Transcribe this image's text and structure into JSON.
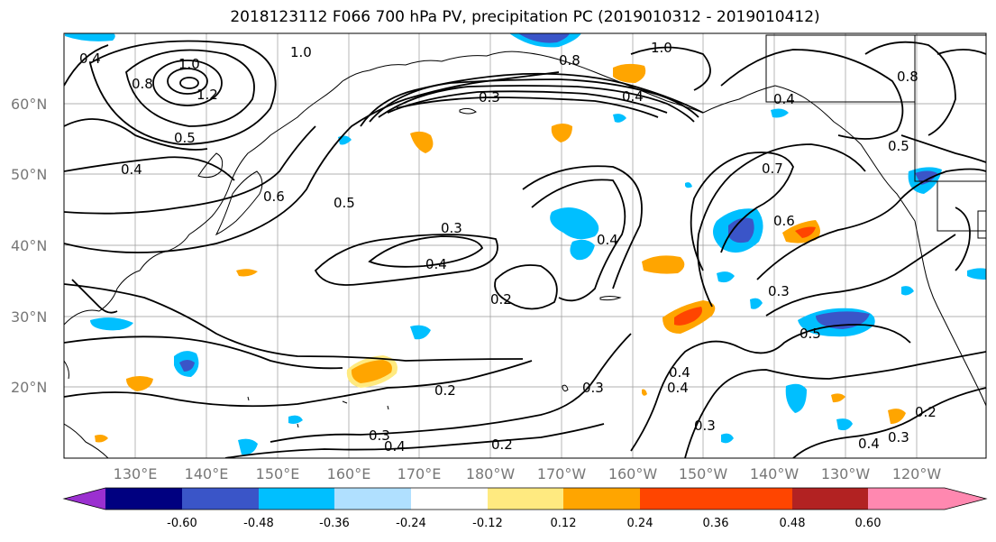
{
  "title": "2018123112 F066 700 hPa PV, precipitation PC (2019010312 - 2019010412)",
  "lat_labels": [
    "60°N",
    "50°N",
    "40°N",
    "30°N",
    "20°N"
  ],
  "lon_labels": [
    "130°E",
    "140°E",
    "150°E",
    "160°E",
    "170°E",
    "180°W",
    "170°W",
    "160°W",
    "150°W",
    "140°W",
    "130°W",
    "120°W"
  ],
  "contour_labels": [
    "1.0",
    "1.0",
    "1.0",
    "1.2",
    "0.8",
    "0.4",
    "0.4",
    "0.5",
    "0.6",
    "0.5",
    "0.3",
    "0.4",
    "0.2",
    "0.4",
    "0.3",
    "0.2",
    "0.3",
    "0.4",
    "0.2",
    "0.3",
    "0.4",
    "0.7",
    "0.6",
    "0.3",
    "0.5",
    "0.4",
    "0.3",
    "0.2",
    "0.4",
    "0.5",
    "0.8",
    "0.8",
    "0.4",
    "0.3",
    "0.4"
  ],
  "colorbar": {
    "ticks": [
      "-0.60",
      "-0.48",
      "-0.36",
      "-0.24",
      "-0.12",
      "0.12",
      "0.24",
      "0.36",
      "0.48",
      "0.60"
    ],
    "colors": [
      "#9b30d0",
      "#000080",
      "#3a55c8",
      "#00bfff",
      "#b0e0ff",
      "#ffffff",
      "#ffea80",
      "#ffa500",
      "#ff4500",
      "#b22222",
      "#ff88b0"
    ]
  }
}
